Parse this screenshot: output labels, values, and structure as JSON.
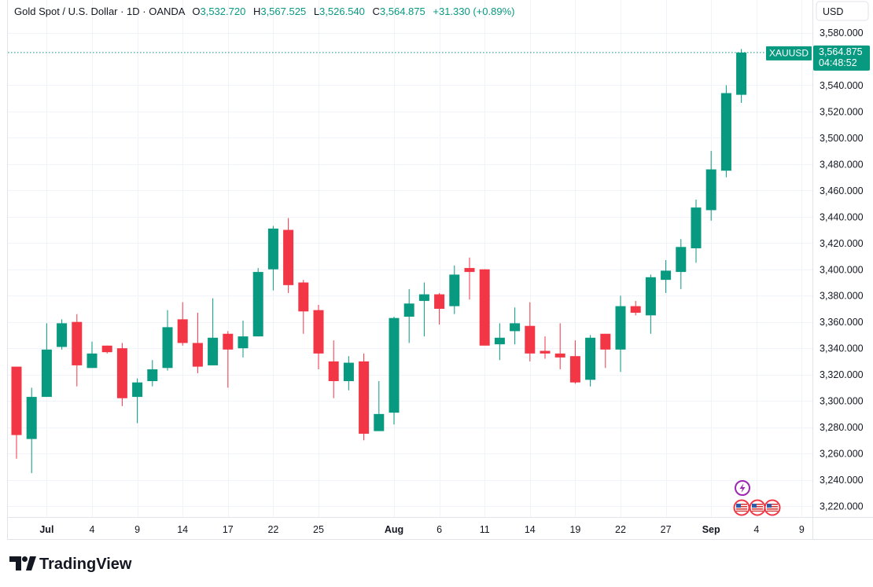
{
  "header": {
    "symbol_title": "Gold Spot / U.S. Dollar · 1D · OANDA",
    "o_label": "O",
    "o_value": "3,532.720",
    "h_label": "H",
    "h_value": "3,567.525",
    "l_label": "L",
    "l_value": "3,526.540",
    "c_label": "C",
    "c_value": "3,564.875",
    "change": "+31.330 (+0.89%)"
  },
  "currency_button": "USD",
  "price_tag": {
    "symbol": "XAUUSD",
    "price": "3,564.875",
    "countdown": "04:48:52"
  },
  "logo_text": "TradingView",
  "colors": {
    "up": "#089981",
    "down": "#f23645",
    "grid": "#f0f3fa",
    "text": "#131722",
    "header_value": "#089981",
    "price_line": "#089981",
    "event_purple": "#9c27b0"
  },
  "event_icons": [
    "lightning-icon",
    "us-flag-icon",
    "us-flag-icon",
    "us-flag-icon"
  ],
  "chart_data": {
    "type": "candlestick",
    "series": [
      {
        "name": "XAUUSD"
      }
    ],
    "ylim": [
      3210,
      3590
    ],
    "y_ticks": [
      3220,
      3240,
      3260,
      3280,
      3300,
      3320,
      3340,
      3360,
      3380,
      3400,
      3420,
      3440,
      3460,
      3480,
      3500,
      3520,
      3540,
      3580
    ],
    "y_tick_labels": [
      "3,220.000",
      "3,240.000",
      "3,260.000",
      "3,280.000",
      "3,300.000",
      "3,320.000",
      "3,340.000",
      "3,360.000",
      "3,380.000",
      "3,400.000",
      "3,420.000",
      "3,440.000",
      "3,460.000",
      "3,480.000",
      "3,500.000",
      "3,520.000",
      "3,540.000",
      "3,580.000"
    ],
    "x_ticks": [
      {
        "label": "Jul",
        "bar": 2,
        "bold": true
      },
      {
        "label": "4",
        "bar": 5
      },
      {
        "label": "9",
        "bar": 8
      },
      {
        "label": "14",
        "bar": 11
      },
      {
        "label": "17",
        "bar": 14
      },
      {
        "label": "22",
        "bar": 17
      },
      {
        "label": "25",
        "bar": 20
      },
      {
        "label": "Aug",
        "bar": 25,
        "bold": true
      },
      {
        "label": "6",
        "bar": 28
      },
      {
        "label": "11",
        "bar": 31
      },
      {
        "label": "14",
        "bar": 34
      },
      {
        "label": "19",
        "bar": 37
      },
      {
        "label": "22",
        "bar": 40
      },
      {
        "label": "27",
        "bar": 43
      },
      {
        "label": "Sep",
        "bar": 46,
        "bold": true
      },
      {
        "label": "4",
        "bar": 49
      },
      {
        "label": "9",
        "bar": 52
      }
    ],
    "last_price": 3564.875,
    "candles": [
      {
        "o": 3326,
        "h": 3326,
        "l": 3256,
        "c": 3274
      },
      {
        "o": 3271,
        "h": 3310,
        "l": 3245,
        "c": 3303
      },
      {
        "o": 3303,
        "h": 3359,
        "l": 3303,
        "c": 3339
      },
      {
        "o": 3341,
        "h": 3362,
        "l": 3339,
        "c": 3359
      },
      {
        "o": 3360,
        "h": 3366,
        "l": 3311,
        "c": 3327
      },
      {
        "o": 3325,
        "h": 3345,
        "l": 3325,
        "c": 3336
      },
      {
        "o": 3342,
        "h": 3342,
        "l": 3336,
        "c": 3337
      },
      {
        "o": 3340,
        "h": 3344,
        "l": 3296,
        "c": 3302
      },
      {
        "o": 3303,
        "h": 3317,
        "l": 3283,
        "c": 3314
      },
      {
        "o": 3315,
        "h": 3331,
        "l": 3311,
        "c": 3324
      },
      {
        "o": 3325,
        "h": 3369,
        "l": 3323,
        "c": 3356
      },
      {
        "o": 3362,
        "h": 3375,
        "l": 3342,
        "c": 3344
      },
      {
        "o": 3344,
        "h": 3367,
        "l": 3321,
        "c": 3326
      },
      {
        "o": 3327,
        "h": 3378,
        "l": 3327,
        "c": 3348
      },
      {
        "o": 3351,
        "h": 3353,
        "l": 3310,
        "c": 3339
      },
      {
        "o": 3340,
        "h": 3361,
        "l": 3333,
        "c": 3349
      },
      {
        "o": 3349,
        "h": 3401,
        "l": 3349,
        "c": 3398
      },
      {
        "o": 3400,
        "h": 3433,
        "l": 3384,
        "c": 3431
      },
      {
        "o": 3430,
        "h": 3439,
        "l": 3382,
        "c": 3388
      },
      {
        "o": 3390,
        "h": 3392,
        "l": 3351,
        "c": 3368
      },
      {
        "o": 3369,
        "h": 3373,
        "l": 3324,
        "c": 3336
      },
      {
        "o": 3330,
        "h": 3346,
        "l": 3302,
        "c": 3315
      },
      {
        "o": 3315,
        "h": 3334,
        "l": 3308,
        "c": 3329
      },
      {
        "o": 3330,
        "h": 3336,
        "l": 3270,
        "c": 3275
      },
      {
        "o": 3277,
        "h": 3315,
        "l": 3277,
        "c": 3290
      },
      {
        "o": 3291,
        "h": 3364,
        "l": 3282,
        "c": 3363
      },
      {
        "o": 3364,
        "h": 3385,
        "l": 3344,
        "c": 3374
      },
      {
        "o": 3376,
        "h": 3390,
        "l": 3349,
        "c": 3381
      },
      {
        "o": 3381,
        "h": 3382,
        "l": 3358,
        "c": 3370
      },
      {
        "o": 3372,
        "h": 3403,
        "l": 3366,
        "c": 3396
      },
      {
        "o": 3401,
        "h": 3409,
        "l": 3377,
        "c": 3398
      },
      {
        "o": 3400,
        "h": 3400,
        "l": 3343,
        "c": 3342
      },
      {
        "o": 3343,
        "h": 3359,
        "l": 3331,
        "c": 3348
      },
      {
        "o": 3353,
        "h": 3371,
        "l": 3343,
        "c": 3359
      },
      {
        "o": 3357,
        "h": 3375,
        "l": 3330,
        "c": 3336
      },
      {
        "o": 3338,
        "h": 3349,
        "l": 3332,
        "c": 3336
      },
      {
        "o": 3336,
        "h": 3359,
        "l": 3324,
        "c": 3333
      },
      {
        "o": 3334,
        "h": 3346,
        "l": 3313,
        "c": 3314
      },
      {
        "o": 3316,
        "h": 3350,
        "l": 3311,
        "c": 3348
      },
      {
        "o": 3351,
        "h": 3351,
        "l": 3325,
        "c": 3339
      },
      {
        "o": 3339,
        "h": 3380,
        "l": 3322,
        "c": 3372
      },
      {
        "o": 3372,
        "h": 3376,
        "l": 3365,
        "c": 3367
      },
      {
        "o": 3365,
        "h": 3396,
        "l": 3351,
        "c": 3394
      },
      {
        "o": 3392,
        "h": 3407,
        "l": 3382,
        "c": 3399
      },
      {
        "o": 3398,
        "h": 3423,
        "l": 3385,
        "c": 3417
      },
      {
        "o": 3416,
        "h": 3453,
        "l": 3405,
        "c": 3447
      },
      {
        "o": 3445,
        "h": 3490,
        "l": 3437,
        "c": 3476
      },
      {
        "o": 3475,
        "h": 3540,
        "l": 3470,
        "c": 3534
      },
      {
        "o": 3532.72,
        "h": 3567.525,
        "l": 3526.54,
        "c": 3564.875
      }
    ]
  }
}
